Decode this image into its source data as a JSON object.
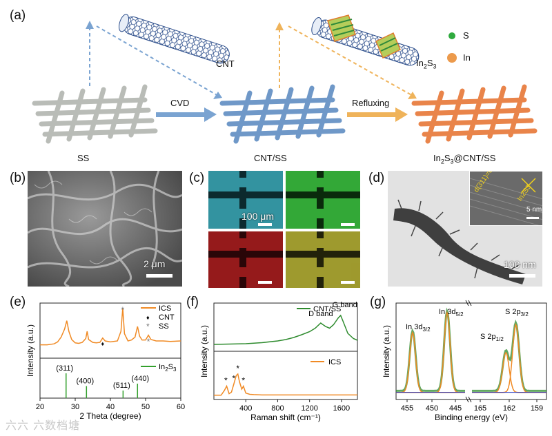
{
  "panel_a": {
    "label": "(a)",
    "cnt_label": "CNT",
    "in2s3_label": "In",
    "in2s3_sub": "2",
    "in2s3_tail": "S",
    "in2s3_tail_sub": "3",
    "legend_s": "S",
    "legend_in": "In",
    "step1": "CVD",
    "step2": "Refluxing",
    "mesh1": "SS",
    "mesh2": "CNT/SS",
    "mesh3_a": "In",
    "mesh3_sub1": "2",
    "mesh3_b": "S",
    "mesh3_sub2": "3",
    "mesh3_c": "@CNT/SS",
    "colors": {
      "ss": "#b9bcb7",
      "cnt": "#6f98c8",
      "ics": "#e9844a",
      "arrow1": "#7aa3d1",
      "arrow2": "#efb35a",
      "s_dot": "#2faa3e",
      "in_dot": "#ec9a4c"
    }
  },
  "panel_b": {
    "label": "(b)",
    "scale": "2 μm"
  },
  "panel_c": {
    "label": "(c)",
    "scale": "100 μm"
  },
  "panel_d": {
    "label": "(d)",
    "scale": "100 nm",
    "inset_scale": "5 nm",
    "d_spacing": "d(311)=0.324 nm",
    "phase": "In2S3"
  },
  "panel_e": {
    "label": "(e)"
  },
  "panel_f": {
    "label": "(f)"
  },
  "panel_g": {
    "label": "(g)"
  },
  "watermark": "六六 六数档塘",
  "chart_data": [
    {
      "panel": "(e)",
      "type": "line",
      "xlabel": "2 Theta (degree)",
      "ylabel": "Intensity (a.u.)",
      "xlim": [
        20,
        60
      ],
      "xticks": [
        "20",
        "30",
        "40",
        "50",
        "60"
      ],
      "legend": [
        "ICS",
        "CNT",
        "SS"
      ],
      "series": [
        {
          "name": "ICS",
          "color": "#f08a24",
          "x": [
            20,
            22,
            24,
            25,
            26,
            27,
            27.6,
            28.2,
            29,
            30,
            31,
            32,
            33,
            33.4,
            33.8,
            35,
            36,
            37,
            37.8,
            38.5,
            40,
            42,
            43,
            43.5,
            44,
            45,
            46,
            47,
            47.7,
            48.3,
            49,
            50,
            50.8,
            51.5,
            53,
            55,
            57,
            60
          ],
          "y": [
            0.22,
            0.22,
            0.24,
            0.28,
            0.38,
            0.55,
            0.72,
            0.5,
            0.33,
            0.26,
            0.25,
            0.27,
            0.35,
            0.5,
            0.33,
            0.27,
            0.26,
            0.27,
            0.36,
            0.3,
            0.28,
            0.3,
            0.5,
            0.98,
            0.45,
            0.3,
            0.32,
            0.38,
            0.6,
            0.4,
            0.32,
            0.32,
            0.42,
            0.33,
            0.3,
            0.3,
            0.29,
            0.3
          ]
        },
        {
          "name": "In2S3",
          "color": "#33a02c",
          "type": "stick",
          "x": [
            27.4,
            33.2,
            43.6,
            47.7
          ],
          "y": [
            0.72,
            0.35,
            0.22,
            0.42
          ],
          "labels": [
            "(311)",
            "(400)",
            "(511)",
            "(440)"
          ]
        }
      ],
      "markers": [
        {
          "symbol": "♦",
          "name": "CNT",
          "x": 37.8
        },
        {
          "symbol": "*",
          "name": "SS",
          "x": 43.5
        },
        {
          "symbol": "*",
          "name": "SS",
          "x": 50.8
        }
      ]
    },
    {
      "panel": "(f)",
      "type": "line",
      "xlabel": "Raman shift (cm⁻¹)",
      "ylabel": "Intensity (a.u.)",
      "xlim": [
        0,
        1800
      ],
      "xticks": [
        "400",
        "800",
        "1200",
        "1600"
      ],
      "series": [
        {
          "name": "CNT/SS",
          "color": "#2e8b2e",
          "x": [
            0,
            200,
            400,
            600,
            800,
            900,
            1000,
            1100,
            1200,
            1270,
            1340,
            1400,
            1450,
            1500,
            1560,
            1590,
            1620,
            1680,
            1750,
            1800
          ],
          "y": [
            0.08,
            0.09,
            0.1,
            0.13,
            0.18,
            0.22,
            0.28,
            0.36,
            0.45,
            0.55,
            0.7,
            0.6,
            0.55,
            0.65,
            0.85,
            0.92,
            0.75,
            0.4,
            0.25,
            0.2
          ]
        },
        {
          "name": "ICS",
          "color": "#f08a24",
          "x": [
            0,
            90,
            130,
            160,
            190,
            220,
            250,
            280,
            300,
            320,
            350,
            370,
            400,
            450,
            500,
            600,
            800,
            1000,
            1200,
            1400,
            1600,
            1800
          ],
          "y": [
            0.05,
            0.05,
            0.2,
            0.35,
            0.1,
            0.15,
            0.42,
            0.7,
            0.75,
            0.5,
            0.25,
            0.35,
            0.12,
            0.08,
            0.07,
            0.06,
            0.06,
            0.06,
            0.06,
            0.06,
            0.06,
            0.06
          ]
        }
      ],
      "annotations": [
        "D band",
        "G band"
      ],
      "stars": [
        {
          "symbol": "*",
          "x": 150
        },
        {
          "symbol": "*",
          "x": 250
        },
        {
          "symbol": "*",
          "x": 300
        },
        {
          "symbol": "*",
          "x": 370
        }
      ]
    },
    {
      "panel": "(g)",
      "type": "line",
      "xlabel": "Binding energy (eV)",
      "ylabel": "Intensity (a.u.)",
      "xticks": [
        "455",
        "450",
        "445",
        "165",
        "162",
        "159"
      ],
      "peak_labels": [
        {
          "main": "In 3d",
          "sub": "3/2"
        },
        {
          "main": "In 3d",
          "sub": "5/2"
        },
        {
          "main": "S 2p",
          "sub": "1/2"
        },
        {
          "main": "S 2p",
          "sub": "3/2"
        }
      ],
      "segments": [
        {
          "name": "In 3d",
          "x_range": [
            456,
            441
          ],
          "peaks": [
            {
              "center": 452.4,
              "height": 0.75
            },
            {
              "center": 444.9,
              "height": 1.0
            }
          ]
        },
        {
          "name": "S 2p",
          "x_range": [
            167,
            158
          ],
          "peaks": [
            {
              "center": 162.9,
              "height": 0.5
            },
            {
              "center": 161.7,
              "height": 0.85
            }
          ]
        }
      ]
    }
  ]
}
